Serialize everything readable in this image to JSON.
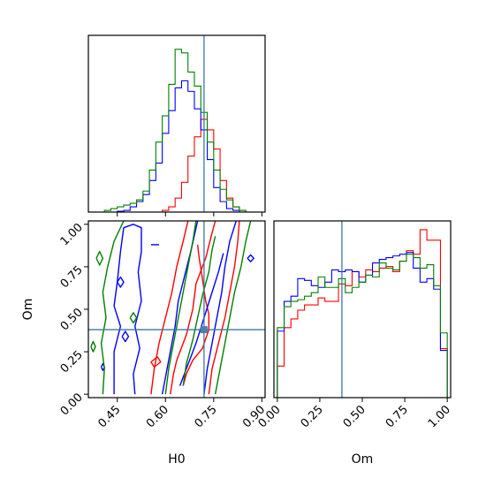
{
  "chart_data": {
    "type": "corner",
    "parameters": [
      "H0",
      "Om"
    ],
    "truth": {
      "H0": 0.72,
      "Om": 0.38
    },
    "truth_color": "#3b78a0",
    "series_colors": [
      "#ff0000",
      "#0000ff",
      "#008000"
    ],
    "marginal_H0": {
      "xlim": [
        0.36,
        0.91
      ],
      "xticks": [
        0.45,
        0.6,
        0.75,
        0.9
      ],
      "bin_edges": [
        0.39,
        0.41,
        0.43,
        0.45,
        0.47,
        0.49,
        0.51,
        0.53,
        0.55,
        0.57,
        0.59,
        0.61,
        0.63,
        0.65,
        0.67,
        0.69,
        0.71,
        0.73,
        0.75,
        0.77,
        0.79,
        0.81,
        0.83,
        0.85,
        0.87,
        0.89
      ],
      "series": [
        {
          "color": "#ff0000",
          "values": [
            0,
            0,
            0,
            0,
            0,
            0,
            0,
            0,
            0,
            0,
            0.01,
            0.03,
            0.08,
            0.17,
            0.32,
            0.43,
            0.53,
            0.47,
            0.36,
            0.18,
            0.08,
            0.03,
            0.01,
            0,
            0
          ]
        },
        {
          "color": "#0000ff",
          "values": [
            0,
            0,
            0,
            0.005,
            0.01,
            0.03,
            0.06,
            0.1,
            0.18,
            0.28,
            0.45,
            0.58,
            0.71,
            0.75,
            0.69,
            0.59,
            0.47,
            0.3,
            0.14,
            0.06,
            0.02,
            0.01,
            0,
            0,
            0
          ]
        },
        {
          "color": "#008000",
          "values": [
            0,
            0.01,
            0.02,
            0.03,
            0.04,
            0.05,
            0.07,
            0.12,
            0.24,
            0.4,
            0.55,
            0.73,
            0.93,
            0.91,
            0.8,
            0.72,
            0.57,
            0.4,
            0.24,
            0.13,
            0.07,
            0.03,
            0.01,
            0,
            0
          ]
        }
      ]
    },
    "marginal_Om": {
      "xlim": [
        -0.02,
        1.02
      ],
      "xticks": [
        0.0,
        0.25,
        0.5,
        0.75,
        1.0
      ],
      "bin_edges": [
        0.0,
        0.04,
        0.08,
        0.12,
        0.16,
        0.2,
        0.24,
        0.28,
        0.32,
        0.36,
        0.4,
        0.44,
        0.48,
        0.52,
        0.56,
        0.6,
        0.64,
        0.68,
        0.72,
        0.76,
        0.8,
        0.84,
        0.88,
        0.92,
        0.96,
        1.0
      ],
      "series": [
        {
          "color": "#ff0000",
          "values": [
            0.18,
            0.4,
            0.45,
            0.5,
            0.53,
            0.53,
            0.57,
            0.55,
            0.55,
            0.65,
            0.64,
            0.72,
            0.69,
            0.73,
            0.72,
            0.74,
            0.75,
            0.72,
            0.78,
            0.84,
            0.82,
            0.96,
            0.9,
            0.9,
            0.28
          ]
        },
        {
          "color": "#0000ff",
          "values": [
            0.38,
            0.55,
            0.58,
            0.68,
            0.67,
            0.64,
            0.63,
            0.66,
            0.73,
            0.72,
            0.73,
            0.72,
            0.66,
            0.7,
            0.77,
            0.79,
            0.8,
            0.81,
            0.82,
            0.83,
            0.74,
            0.66,
            0.68,
            0.62,
            0.27
          ]
        },
        {
          "color": "#008000",
          "values": [
            0.4,
            0.52,
            0.55,
            0.56,
            0.58,
            0.6,
            0.69,
            0.63,
            0.63,
            0.68,
            0.6,
            0.63,
            0.66,
            0.7,
            0.69,
            0.77,
            0.74,
            0.73,
            0.78,
            0.82,
            0.8,
            0.74,
            0.76,
            0.64,
            0.37
          ]
        }
      ]
    },
    "joint_H0_Om": {
      "xlim": [
        0.36,
        0.91
      ],
      "ylim": [
        -0.02,
        1.02
      ],
      "xticks": [
        0.45,
        0.6,
        0.75,
        0.9
      ],
      "yticks": [
        0.0,
        0.25,
        0.5,
        0.75,
        1.0
      ],
      "contours": [
        {
          "color": "#ff0000",
          "points": [
            [
              0.555,
              0.0
            ],
            [
              0.565,
              0.15
            ],
            [
              0.58,
              0.3
            ],
            [
              0.6,
              0.45
            ],
            [
              0.62,
              0.6
            ],
            [
              0.635,
              0.75
            ],
            [
              0.655,
              0.9
            ],
            [
              0.67,
              1.02
            ]
          ]
        },
        {
          "color": "#ff0000",
          "points": [
            [
              0.615,
              0.0
            ],
            [
              0.625,
              0.12
            ],
            [
              0.635,
              0.2
            ],
            [
              0.665,
              0.35
            ],
            [
              0.685,
              0.5
            ],
            [
              0.695,
              0.65
            ],
            [
              0.725,
              0.8
            ],
            [
              0.745,
              0.95
            ],
            [
              0.755,
              1.02
            ]
          ]
        },
        {
          "color": "#ff0000",
          "points": [
            [
              0.735,
              0.0
            ],
            [
              0.745,
              0.15
            ],
            [
              0.765,
              0.3
            ],
            [
              0.785,
              0.45
            ],
            [
              0.8,
              0.6
            ],
            [
              0.815,
              0.75
            ],
            [
              0.825,
              0.9
            ],
            [
              0.83,
              1.02
            ]
          ]
        },
        {
          "color": "#ff0000",
          "points": [
            [
              0.655,
              0.05
            ],
            [
              0.665,
              0.12
            ],
            [
              0.685,
              0.2
            ],
            [
              0.715,
              0.27
            ],
            [
              0.735,
              0.38
            ],
            [
              0.735,
              0.47
            ],
            [
              0.725,
              0.55
            ],
            [
              0.715,
              0.68
            ],
            [
              0.705,
              0.8
            ],
            [
              0.7,
              0.88
            ]
          ]
        },
        {
          "color": "#ff0000",
          "points": [
            [
              0.565,
              0.16
            ],
            [
              0.585,
              0.19
            ],
            [
              0.575,
              0.22
            ],
            [
              0.555,
              0.19
            ],
            [
              0.565,
              0.16
            ]
          ]
        },
        {
          "color": "#0000ff",
          "points": [
            [
              0.44,
              0.0
            ],
            [
              0.44,
              0.08
            ],
            [
              0.44,
              0.25
            ],
            [
              0.46,
              0.4
            ],
            [
              0.44,
              0.52
            ],
            [
              0.45,
              0.66
            ],
            [
              0.46,
              0.84
            ],
            [
              0.47,
              0.98
            ],
            [
              0.5,
              1.0
            ],
            [
              0.525,
              0.98
            ],
            [
              0.525,
              0.84
            ],
            [
              0.515,
              0.72
            ],
            [
              0.525,
              0.55
            ],
            [
              0.505,
              0.4
            ],
            [
              0.52,
              0.27
            ],
            [
              0.5,
              0.12
            ],
            [
              0.505,
              0.0
            ]
          ]
        },
        {
          "color": "#0000ff",
          "points": [
            [
              0.59,
              0.0
            ],
            [
              0.6,
              0.1
            ],
            [
              0.615,
              0.25
            ],
            [
              0.63,
              0.4
            ],
            [
              0.64,
              0.55
            ],
            [
              0.66,
              0.7
            ],
            [
              0.68,
              0.85
            ],
            [
              0.7,
              1.02
            ]
          ]
        },
        {
          "color": "#0000ff",
          "points": [
            [
              0.72,
              0.0
            ],
            [
              0.73,
              0.15
            ],
            [
              0.745,
              0.3
            ],
            [
              0.76,
              0.45
            ],
            [
              0.775,
              0.6
            ],
            [
              0.785,
              0.75
            ],
            [
              0.8,
              0.9
            ],
            [
              0.82,
              1.02
            ]
          ]
        },
        {
          "color": "#0000ff",
          "points": [
            [
              0.645,
              0.05
            ],
            [
              0.665,
              0.15
            ],
            [
              0.695,
              0.3
            ],
            [
              0.72,
              0.45
            ],
            [
              0.745,
              0.6
            ],
            [
              0.765,
              0.72
            ],
            [
              0.78,
              0.83
            ]
          ]
        },
        {
          "color": "#0000ff",
          "points": [
            [
              0.855,
              0.8
            ],
            [
              0.865,
              0.82
            ],
            [
              0.875,
              0.8
            ],
            [
              0.865,
              0.78
            ],
            [
              0.855,
              0.8
            ]
          ]
        },
        {
          "color": "#0000ff",
          "points": [
            [
              0.465,
              0.34
            ],
            [
              0.475,
              0.37
            ],
            [
              0.485,
              0.34
            ],
            [
              0.475,
              0.31
            ],
            [
              0.465,
              0.34
            ]
          ]
        },
        {
          "color": "#0000ff",
          "points": [
            [
              0.45,
              0.66
            ],
            [
              0.46,
              0.69
            ],
            [
              0.47,
              0.66
            ],
            [
              0.46,
              0.63
            ],
            [
              0.45,
              0.66
            ]
          ]
        },
        {
          "color": "#0000ff",
          "points": [
            [
              0.4,
              0.16
            ],
            [
              0.405,
              0.18
            ],
            [
              0.41,
              0.16
            ],
            [
              0.405,
              0.14
            ],
            [
              0.4,
              0.16
            ]
          ]
        },
        {
          "color": "#0000ff",
          "points": [
            [
              0.555,
              0.88
            ],
            [
              0.58,
              0.88
            ]
          ]
        },
        {
          "color": "#008000",
          "points": [
            [
              0.405,
              0.0
            ],
            [
              0.41,
              0.15
            ],
            [
              0.4,
              0.3
            ],
            [
              0.415,
              0.45
            ],
            [
              0.405,
              0.6
            ],
            [
              0.42,
              0.75
            ],
            [
              0.44,
              0.9
            ],
            [
              0.47,
              1.02
            ]
          ]
        },
        {
          "color": "#008000",
          "points": [
            [
              0.6,
              0.0
            ],
            [
              0.61,
              0.15
            ],
            [
              0.625,
              0.3
            ],
            [
              0.64,
              0.45
            ],
            [
              0.655,
              0.6
            ],
            [
              0.67,
              0.75
            ],
            [
              0.685,
              0.9
            ],
            [
              0.695,
              1.02
            ]
          ]
        },
        {
          "color": "#008000",
          "points": [
            [
              0.755,
              0.0
            ],
            [
              0.77,
              0.15
            ],
            [
              0.785,
              0.3
            ],
            [
              0.8,
              0.45
            ],
            [
              0.815,
              0.6
            ],
            [
              0.835,
              0.75
            ],
            [
              0.85,
              0.9
            ],
            [
              0.865,
              1.02
            ]
          ]
        },
        {
          "color": "#008000",
          "points": [
            [
              0.655,
              0.05
            ],
            [
              0.665,
              0.18
            ],
            [
              0.685,
              0.32
            ],
            [
              0.7,
              0.45
            ],
            [
              0.715,
              0.58
            ],
            [
              0.735,
              0.72
            ],
            [
              0.745,
              0.85
            ],
            [
              0.755,
              0.93
            ]
          ]
        },
        {
          "color": "#008000",
          "points": [
            [
              0.385,
              0.8
            ],
            [
              0.395,
              0.84
            ],
            [
              0.405,
              0.8
            ],
            [
              0.395,
              0.76
            ],
            [
              0.385,
              0.8
            ]
          ]
        },
        {
          "color": "#008000",
          "points": [
            [
              0.368,
              0.28
            ],
            [
              0.375,
              0.31
            ],
            [
              0.382,
              0.28
            ],
            [
              0.375,
              0.25
            ],
            [
              0.368,
              0.28
            ]
          ]
        },
        {
          "color": "#008000",
          "points": [
            [
              0.49,
              0.45
            ],
            [
              0.5,
              0.48
            ],
            [
              0.51,
              0.45
            ],
            [
              0.5,
              0.42
            ],
            [
              0.49,
              0.45
            ]
          ]
        }
      ]
    },
    "xlabel_H0": "H0",
    "xlabel_Om": "Om",
    "ylabel_Om": "Om"
  }
}
